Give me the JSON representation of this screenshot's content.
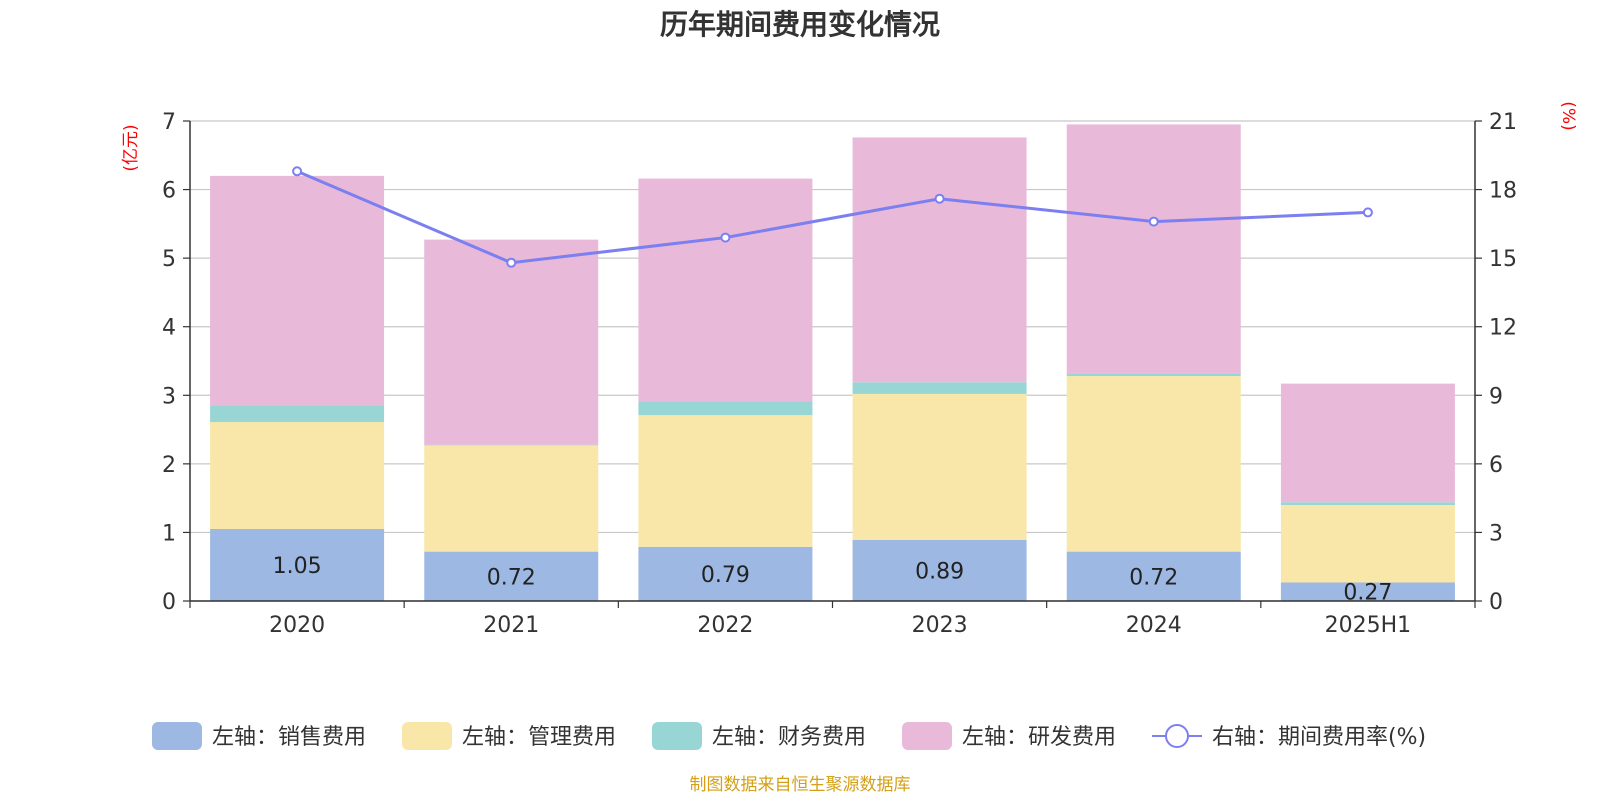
{
  "chart_data": {
    "type": "bar",
    "stacked": true,
    "title": "历年期间费用变化情况",
    "categories": [
      "2020",
      "2021",
      "2022",
      "2023",
      "2024",
      "2025H1"
    ],
    "left_axis": {
      "unit_label": "(亿元)",
      "ylim": [
        0,
        7
      ],
      "ticks": [
        "0",
        "1",
        "2",
        "3",
        "4",
        "5",
        "6",
        "7"
      ]
    },
    "right_axis": {
      "unit_label": "(%)",
      "ylim": [
        0,
        21
      ],
      "ticks": [
        "0",
        "3",
        "6",
        "9",
        "12",
        "15",
        "18",
        "21"
      ]
    },
    "series": [
      {
        "name": "左轴：销售费用",
        "type": "bar",
        "axis": "left",
        "color": "#9db8e2",
        "values": [
          1.05,
          0.72,
          0.79,
          0.89,
          0.72,
          0.27
        ],
        "data_labels": [
          "1.05",
          "0.72",
          "0.79",
          "0.89",
          "0.72",
          "0.27"
        ]
      },
      {
        "name": "左轴：管理费用",
        "type": "bar",
        "axis": "left",
        "color": "#f8e7a8",
        "values": [
          1.56,
          1.55,
          1.92,
          2.13,
          2.56,
          1.13
        ]
      },
      {
        "name": "左轴：财务费用",
        "type": "bar",
        "axis": "left",
        "color": "#98d6d5",
        "values": [
          0.24,
          0.01,
          0.2,
          0.17,
          0.04,
          0.04
        ]
      },
      {
        "name": "左轴：研发费用",
        "type": "bar",
        "axis": "left",
        "color": "#e8b9d9",
        "values": [
          3.35,
          2.99,
          3.25,
          3.57,
          3.63,
          1.73
        ]
      },
      {
        "name": "右轴：期间费用率(%)",
        "type": "line",
        "axis": "right",
        "color": "#7b7ff0",
        "values": [
          18.8,
          14.8,
          15.9,
          17.6,
          16.6,
          17.0
        ]
      }
    ],
    "grid": true,
    "legend_position": "bottom",
    "axis_label_color": "#ff0000"
  },
  "source_note": "制图数据来自恒生聚源数据库",
  "source_color": "#d4a017"
}
